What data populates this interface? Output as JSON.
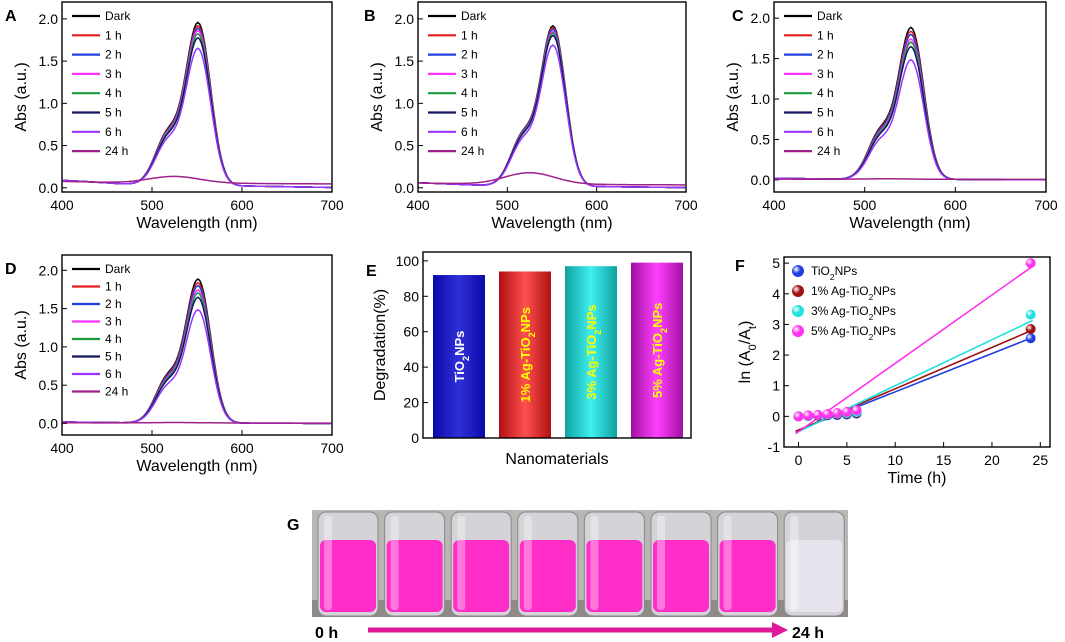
{
  "series_styles": [
    {
      "name": "Dark",
      "color": "#000000"
    },
    {
      "name": "1 h",
      "color": "#e41a1c"
    },
    {
      "name": "2 h",
      "color": "#1f3fe0"
    },
    {
      "name": "3 h",
      "color": "#ff33ff"
    },
    {
      "name": "4 h",
      "color": "#1a9a3a"
    },
    {
      "name": "5 h",
      "color": "#14145e"
    },
    {
      "name": "6 h",
      "color": "#9933ff"
    },
    {
      "name": "24 h",
      "color": "#a0208a"
    }
  ],
  "chart_data": [
    {
      "panel": "A",
      "type": "line",
      "xlabel": "Wavelength (nm)",
      "ylabel": "Abs (a.u.)",
      "xlim": [
        400,
        700
      ],
      "ylim": [
        -0.05,
        2.2
      ],
      "xticks": [
        400,
        500,
        600,
        700
      ],
      "yticks": [
        0.0,
        0.5,
        1.0,
        1.5,
        2.0
      ],
      "series": [
        {
          "name": "Dark",
          "peak": 2.02,
          "base": 0.09
        },
        {
          "name": "1 h",
          "peak": 1.98,
          "base": 0.09
        },
        {
          "name": "2 h",
          "peak": 1.95,
          "base": 0.09
        },
        {
          "name": "3 h",
          "peak": 1.92,
          "base": 0.09
        },
        {
          "name": "4 h",
          "peak": 1.88,
          "base": 0.09
        },
        {
          "name": "5 h",
          "peak": 1.83,
          "base": 0.09
        },
        {
          "name": "6 h",
          "peak": 1.7,
          "base": 0.09
        },
        {
          "name": "24 h",
          "peak": 0.11,
          "base": 0.08
        }
      ]
    },
    {
      "panel": "B",
      "type": "line",
      "xlabel": "Wavelength (nm)",
      "ylabel": "Abs (a.u.)",
      "xlim": [
        400,
        700
      ],
      "ylim": [
        -0.05,
        2.2
      ],
      "xticks": [
        400,
        500,
        600,
        700
      ],
      "yticks": [
        0.0,
        0.5,
        1.0,
        1.5,
        2.0
      ],
      "series": [
        {
          "name": "Dark",
          "peak": 1.99,
          "base": 0.06
        },
        {
          "name": "1 h",
          "peak": 1.97,
          "base": 0.06
        },
        {
          "name": "2 h",
          "peak": 1.95,
          "base": 0.06
        },
        {
          "name": "3 h",
          "peak": 1.92,
          "base": 0.06
        },
        {
          "name": "4 h",
          "peak": 1.9,
          "base": 0.06
        },
        {
          "name": "5 h",
          "peak": 1.87,
          "base": 0.06
        },
        {
          "name": "6 h",
          "peak": 1.75,
          "base": 0.06
        },
        {
          "name": "24 h",
          "peak": 0.16,
          "base": 0.06
        }
      ]
    },
    {
      "panel": "C",
      "type": "line",
      "xlabel": "Wavelength (nm)",
      "ylabel": "Abs (a.u.)",
      "xlim": [
        400,
        700
      ],
      "ylim": [
        -0.15,
        2.2
      ],
      "xticks": [
        400,
        500,
        600,
        700
      ],
      "yticks": [
        0.0,
        0.5,
        1.0,
        1.5,
        2.0
      ],
      "series": [
        {
          "name": "Dark",
          "peak": 1.97,
          "base": 0.02
        },
        {
          "name": "1 h",
          "peak": 1.92,
          "base": 0.02
        },
        {
          "name": "2 h",
          "peak": 1.88,
          "base": 0.02
        },
        {
          "name": "3 h",
          "peak": 1.82,
          "base": 0.02
        },
        {
          "name": "4 h",
          "peak": 1.78,
          "base": 0.02
        },
        {
          "name": "5 h",
          "peak": 1.72,
          "base": 0.02
        },
        {
          "name": "6 h",
          "peak": 1.55,
          "base": 0.02
        },
        {
          "name": "24 h",
          "peak": 0.01,
          "base": 0.01
        }
      ]
    },
    {
      "panel": "D",
      "type": "line",
      "xlabel": "Wavelength (nm)",
      "ylabel": "Abs (a.u.)",
      "xlim": [
        400,
        700
      ],
      "ylim": [
        -0.15,
        2.2
      ],
      "xticks": [
        400,
        500,
        600,
        700
      ],
      "yticks": [
        0.0,
        0.5,
        1.0,
        1.5,
        2.0
      ],
      "series": [
        {
          "name": "Dark",
          "peak": 1.97,
          "base": 0.02
        },
        {
          "name": "1 h",
          "peak": 1.92,
          "base": 0.02
        },
        {
          "name": "2 h",
          "peak": 1.88,
          "base": 0.02
        },
        {
          "name": "3 h",
          "peak": 1.82,
          "base": 0.02
        },
        {
          "name": "4 h",
          "peak": 1.78,
          "base": 0.02
        },
        {
          "name": "5 h",
          "peak": 1.72,
          "base": 0.02
        },
        {
          "name": "6 h",
          "peak": 1.55,
          "base": 0.02
        },
        {
          "name": "24 h",
          "peak": 0.01,
          "base": 0.01
        }
      ]
    },
    {
      "panel": "E",
      "type": "bar",
      "xlabel": "Nanomaterials",
      "ylabel": "Degradation(%)",
      "ylim": [
        0,
        105
      ],
      "yticks": [
        0,
        20,
        40,
        60,
        80,
        100
      ],
      "categories": [
        "TiO2NPs",
        "1% Ag-TiO2NPs",
        "3% Ag-TiO2NPs",
        "5% Ag-TiO2NPs"
      ],
      "category_labels": [
        [
          "TiO",
          "2",
          "NPs"
        ],
        [
          "1% Ag-TiO",
          "2",
          "NPs"
        ],
        [
          "3% Ag-TiO",
          "2",
          "NPs"
        ],
        [
          "5% Ag-TiO",
          "2",
          "NPs"
        ]
      ],
      "values": [
        92,
        94,
        97,
        99
      ],
      "bar_colors": [
        [
          "#0a0aa8",
          "#3030d8"
        ],
        [
          "#b01010",
          "#ff5050"
        ],
        [
          "#10a0a0",
          "#40f0f0"
        ],
        [
          "#a010a0",
          "#ff40ff"
        ]
      ],
      "label_colors": [
        "#ffffff",
        "#ffff00",
        "#ffff00",
        "#ffff00"
      ]
    },
    {
      "panel": "F",
      "type": "scatter",
      "xlabel": "Time (h)",
      "ylabel": "ln (A0/At)",
      "xlim": [
        -1.5,
        26
      ],
      "ylim": [
        -1,
        5.2
      ],
      "xticks": [
        0,
        5,
        10,
        15,
        20,
        25
      ],
      "yticks": [
        -1,
        0,
        1,
        2,
        3,
        4,
        5
      ],
      "x": [
        0,
        1,
        2,
        3,
        4,
        5,
        6,
        24
      ],
      "series": [
        {
          "name": "TiO2NPs",
          "color": "#1f3fe0",
          "values": [
            0,
            0.01,
            0.02,
            0.03,
            0.04,
            0.06,
            0.09,
            2.55
          ],
          "fit": [
            -0.45,
            0.125
          ]
        },
        {
          "name": "1% Ag-TiO2NPs",
          "color": "#a01010",
          "values": [
            0,
            0.02,
            0.03,
            0.05,
            0.07,
            0.09,
            0.12,
            2.85
          ],
          "fit": [
            -0.45,
            0.135
          ]
        },
        {
          "name": "3% Ag-TiO2NPs",
          "color": "#20e0e0",
          "values": [
            0,
            0.02,
            0.04,
            0.06,
            0.09,
            0.11,
            0.14,
            3.32
          ],
          "fit": [
            -0.5,
            0.15
          ]
        },
        {
          "name": "5% Ag-TiO2NPs",
          "color": "#ff33ee",
          "values": [
            0,
            0.03,
            0.05,
            0.08,
            0.11,
            0.15,
            0.2,
            5.0
          ],
          "fit": [
            -0.5,
            0.223
          ]
        }
      ],
      "legend": [
        [
          "TiO",
          "2",
          "NPs"
        ],
        [
          "1% Ag-TiO",
          "2",
          "NPs"
        ],
        [
          "3% Ag-TiO",
          "2",
          "NPs"
        ],
        [
          "5% Ag-TiO",
          "2",
          "NPs"
        ]
      ]
    }
  ],
  "photo": {
    "panel": "G",
    "start_label": "0 h",
    "end_label": "24 h",
    "vials": 8,
    "vial_colors": [
      "#ff2ec8",
      "#ff2ec8",
      "#ff2ec8",
      "#ff2ec8",
      "#ff2ec8",
      "#ff2ec8",
      "#ff2ec8",
      "#e8e4ee"
    ],
    "arrow_color": "#e0189a"
  }
}
